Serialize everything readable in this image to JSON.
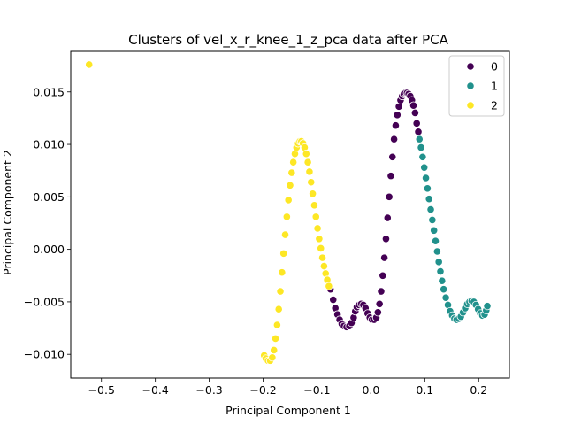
{
  "chart_data": {
    "type": "scatter",
    "title": "Clusters of vel_x_r_knee_1_z_pca data after PCA",
    "xlabel": "Principal Component 1",
    "ylabel": "Principal Component 2",
    "xlim": [
      -0.557,
      0.257
    ],
    "ylim": [
      -0.01226,
      0.01886
    ],
    "xticks": [
      -0.5,
      -0.4,
      -0.3,
      -0.2,
      -0.1,
      0.0,
      0.1,
      0.2
    ],
    "xtick_labels": [
      "−0.5",
      "−0.4",
      "−0.3",
      "−0.2",
      "−0.1",
      "0.0",
      "0.1",
      "0.2"
    ],
    "yticks": [
      -0.01,
      -0.005,
      0.0,
      0.005,
      0.01,
      0.015
    ],
    "ytick_labels": [
      "−0.010",
      "−0.005",
      "0.000",
      "0.005",
      "0.010",
      "0.015"
    ],
    "grid": false,
    "legend_position": "top-right",
    "marker_edge_color": "#ffffff",
    "series": [
      {
        "name": "0",
        "color": "#440154",
        "points": [
          [
            -0.075,
            -0.0038
          ],
          [
            -0.07,
            -0.0048
          ],
          [
            -0.066,
            -0.0056
          ],
          [
            -0.062,
            -0.0062
          ],
          [
            -0.058,
            -0.0067
          ],
          [
            -0.054,
            -0.0071
          ],
          [
            -0.05,
            -0.0073
          ],
          [
            -0.045,
            -0.0074
          ],
          [
            -0.04,
            -0.0073
          ],
          [
            -0.036,
            -0.007
          ],
          [
            -0.032,
            -0.0065
          ],
          [
            -0.029,
            -0.0059
          ],
          [
            -0.026,
            -0.0055
          ],
          [
            -0.022,
            -0.0053
          ],
          [
            -0.018,
            -0.0052
          ],
          [
            -0.014,
            -0.0053
          ],
          [
            -0.01,
            -0.0056
          ],
          [
            -0.006,
            -0.0061
          ],
          [
            -0.002,
            -0.0065
          ],
          [
            0.002,
            -0.0067
          ],
          [
            0.006,
            -0.0067
          ],
          [
            0.01,
            -0.0065
          ],
          [
            0.013,
            -0.006
          ],
          [
            0.016,
            -0.0052
          ],
          [
            0.019,
            -0.004
          ],
          [
            0.022,
            -0.0025
          ],
          [
            0.025,
            -0.0008
          ],
          [
            0.028,
            0.001
          ],
          [
            0.031,
            0.003
          ],
          [
            0.034,
            0.005
          ],
          [
            0.037,
            0.007
          ],
          [
            0.04,
            0.0088
          ],
          [
            0.043,
            0.0105
          ],
          [
            0.046,
            0.0118
          ],
          [
            0.049,
            0.0128
          ],
          [
            0.052,
            0.0136
          ],
          [
            0.055,
            0.0142
          ],
          [
            0.058,
            0.0146
          ],
          [
            0.061,
            0.0148
          ],
          [
            0.064,
            0.0149
          ],
          [
            0.067,
            0.0149
          ],
          [
            0.07,
            0.0148
          ],
          [
            0.073,
            0.0146
          ],
          [
            0.076,
            0.0142
          ],
          [
            0.079,
            0.0137
          ],
          [
            0.082,
            0.013
          ],
          [
            0.085,
            0.012
          ],
          [
            0.088,
            0.0112
          ]
        ]
      },
      {
        "name": "1",
        "color": "#21918c",
        "points": [
          [
            0.09,
            0.0105
          ],
          [
            0.093,
            0.0097
          ],
          [
            0.096,
            0.0088
          ],
          [
            0.099,
            0.0078
          ],
          [
            0.102,
            0.0068
          ],
          [
            0.105,
            0.0058
          ],
          [
            0.108,
            0.0048
          ],
          [
            0.111,
            0.0038
          ],
          [
            0.114,
            0.0028
          ],
          [
            0.117,
            0.0018
          ],
          [
            0.12,
            0.0008
          ],
          [
            0.123,
            -0.0002
          ],
          [
            0.126,
            -0.0012
          ],
          [
            0.129,
            -0.0021
          ],
          [
            0.132,
            -0.003
          ],
          [
            0.135,
            -0.0038
          ],
          [
            0.139,
            -0.0046
          ],
          [
            0.143,
            -0.0053
          ],
          [
            0.147,
            -0.0059
          ],
          [
            0.151,
            -0.0063
          ],
          [
            0.155,
            -0.0066
          ],
          [
            0.159,
            -0.0067
          ],
          [
            0.163,
            -0.0066
          ],
          [
            0.167,
            -0.0064
          ],
          [
            0.171,
            -0.006
          ],
          [
            0.175,
            -0.0056
          ],
          [
            0.179,
            -0.0052
          ],
          [
            0.183,
            -0.005
          ],
          [
            0.187,
            -0.0049
          ],
          [
            0.191,
            -0.005
          ],
          [
            0.195,
            -0.0053
          ],
          [
            0.199,
            -0.0057
          ],
          [
            0.203,
            -0.0061
          ],
          [
            0.207,
            -0.0063
          ],
          [
            0.211,
            -0.0062
          ],
          [
            0.214,
            -0.0058
          ],
          [
            0.216,
            -0.0054
          ]
        ]
      },
      {
        "name": "2",
        "color": "#fde725",
        "points": [
          [
            -0.523,
            0.0176
          ],
          [
            -0.198,
            -0.0101
          ],
          [
            -0.195,
            -0.0104
          ],
          [
            -0.191,
            -0.0106
          ],
          [
            -0.187,
            -0.0106
          ],
          [
            -0.183,
            -0.0103
          ],
          [
            -0.18,
            -0.0096
          ],
          [
            -0.177,
            -0.0085
          ],
          [
            -0.174,
            -0.0072
          ],
          [
            -0.171,
            -0.0057
          ],
          [
            -0.168,
            -0.004
          ],
          [
            -0.165,
            -0.0022
          ],
          [
            -0.162,
            -0.0004
          ],
          [
            -0.159,
            0.0014
          ],
          [
            -0.156,
            0.0031
          ],
          [
            -0.153,
            0.0047
          ],
          [
            -0.15,
            0.0061
          ],
          [
            -0.147,
            0.0073
          ],
          [
            -0.144,
            0.0083
          ],
          [
            -0.141,
            0.0091
          ],
          [
            -0.138,
            0.0097
          ],
          [
            -0.135,
            0.0101
          ],
          [
            -0.132,
            0.0103
          ],
          [
            -0.129,
            0.0103
          ],
          [
            -0.126,
            0.0101
          ],
          [
            -0.123,
            0.0097
          ],
          [
            -0.12,
            0.0091
          ],
          [
            -0.117,
            0.0083
          ],
          [
            -0.114,
            0.0074
          ],
          [
            -0.111,
            0.0064
          ],
          [
            -0.108,
            0.0053
          ],
          [
            -0.105,
            0.0042
          ],
          [
            -0.102,
            0.0031
          ],
          [
            -0.099,
            0.002
          ],
          [
            -0.096,
            0.001
          ],
          [
            -0.093,
            0.0001
          ],
          [
            -0.09,
            -0.0008
          ],
          [
            -0.087,
            -0.0016
          ],
          [
            -0.084,
            -0.0023
          ],
          [
            -0.081,
            -0.0029
          ],
          [
            -0.078,
            -0.0035
          ]
        ]
      }
    ]
  }
}
